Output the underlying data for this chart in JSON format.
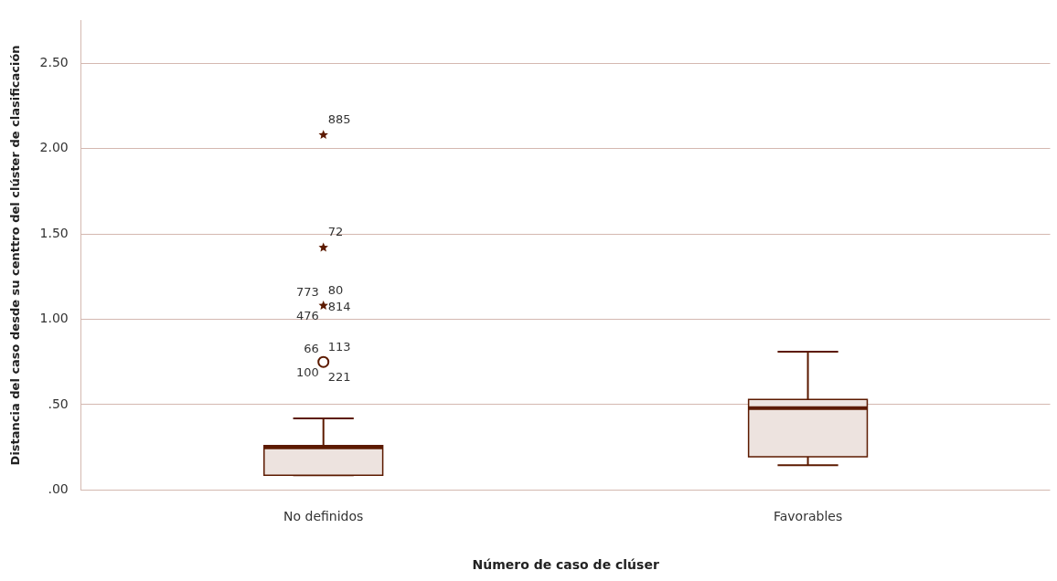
{
  "chart_data": {
    "type": "box",
    "xlabel": "Número de caso de clúser",
    "ylabel": "Distancia del caso desde su centtro del clúster de clasificación",
    "categories": [
      "No definidos",
      "Favorables"
    ],
    "boxes": [
      {
        "low": 0.087,
        "q1": 0.087,
        "median": 0.25,
        "q3": 0.26,
        "high": 0.42
      },
      {
        "low": 0.145,
        "q1": 0.195,
        "median": 0.48,
        "q3": 0.53,
        "high": 0.81
      }
    ],
    "color": "#ede3df",
    "series": [
      {
        "type": "scatter",
        "marker": "star",
        "color": "#5c1a00",
        "x": [
          "No definidos",
          "No definidos",
          "No definidos"
        ],
        "values": [
          1.08,
          1.42,
          2.08
        ]
      },
      {
        "type": "scatter",
        "marker": "circle",
        "color": "#5c1a00",
        "x": [
          "No definidos"
        ],
        "values": [
          0.75
        ]
      }
    ],
    "ylim": [
      0,
      2.75
    ],
    "yticks": [
      {
        "value": 0,
        "label": ".00"
      },
      {
        "value": 0.5,
        "label": ".50"
      },
      {
        "value": 1,
        "label": "1.00"
      },
      {
        "value": 1.5,
        "label": "1.50"
      },
      {
        "value": 2,
        "label": "2.00"
      },
      {
        "value": 2.5,
        "label": "2.50"
      }
    ],
    "grid": "y",
    "legend": false,
    "annotations": [
      {
        "text": "885",
        "x": "No definidos",
        "y": 2.08
      },
      {
        "text": "72",
        "x": "No definidos",
        "y": 1.42
      },
      {
        "text": "773",
        "x": "No definidos",
        "y": 1.08
      },
      {
        "text": "80",
        "x": "No definidos",
        "y": 1.08
      },
      {
        "text": "814",
        "x": "No definidos",
        "y": 1.08
      },
      {
        "text": "476",
        "x": "No definidos",
        "y": 1.08
      },
      {
        "text": "66",
        "x": "No definidos",
        "y": 0.75
      },
      {
        "text": "113",
        "x": "No definidos",
        "y": 0.75
      },
      {
        "text": "221",
        "x": "No definidos",
        "y": 0.75
      },
      {
        "text": "100",
        "x": "No definidos",
        "y": 0.75
      }
    ]
  }
}
